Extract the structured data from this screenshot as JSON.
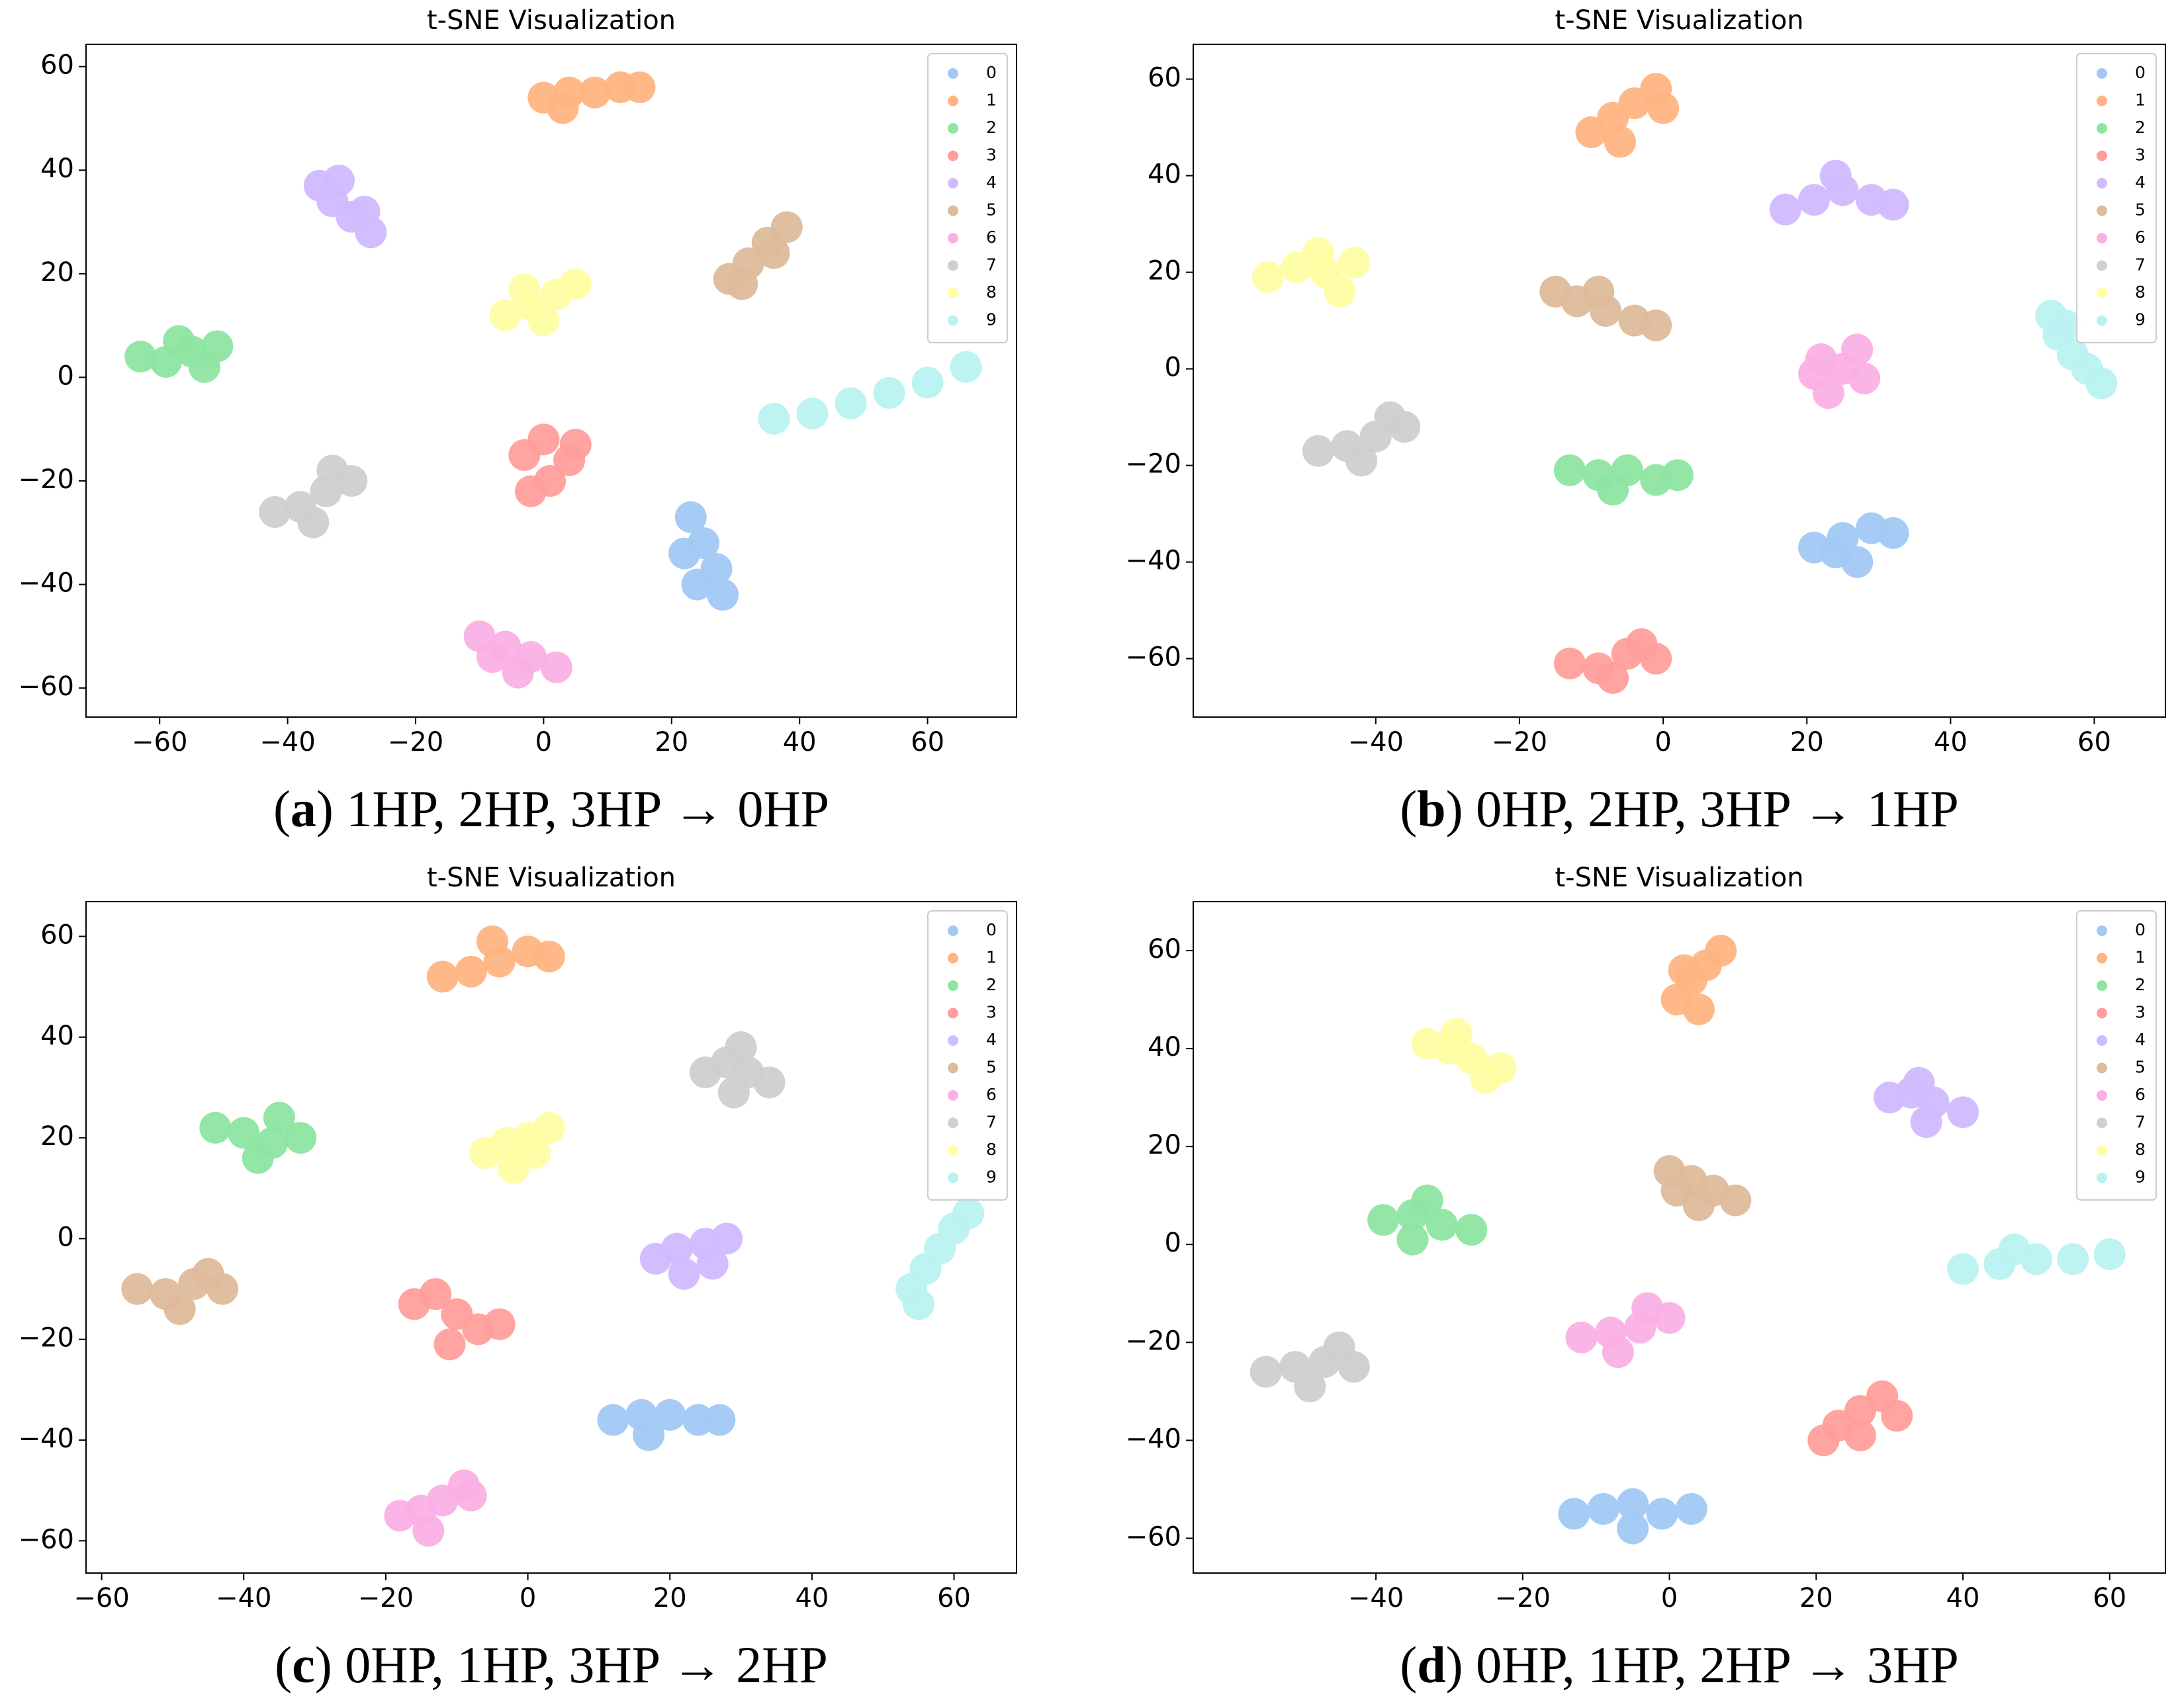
{
  "chart_data": [
    {
      "type": "scatter",
      "title": "t-SNE Visualization",
      "caption": [
        "(",
        "a",
        ") 1HP, 2HP, 3HP → 0HP"
      ],
      "legend": "upper right",
      "grid": false,
      "xlim": [
        -71.5,
        73.9
      ],
      "ylim": [
        -65.6,
        64.3
      ],
      "xticks": [
        {
          "value": -60,
          "label": "−60"
        },
        {
          "value": -40,
          "label": "−40"
        },
        {
          "value": -20,
          "label": "−20"
        },
        0,
        20,
        40,
        60
      ],
      "yticks": [
        {
          "value": -60,
          "label": "−60"
        },
        {
          "value": -40,
          "label": "−40"
        },
        {
          "value": -20,
          "label": "−20"
        },
        0,
        20,
        40,
        60
      ],
      "series": [
        {
          "name": "0",
          "color": "#a1c9f4",
          "x": [
            23,
            25,
            27,
            24,
            28,
            22
          ],
          "y": [
            -27,
            -32,
            -37,
            -40,
            -42,
            -34
          ]
        },
        {
          "name": "1",
          "color": "#ffb482",
          "x": [
            0,
            4,
            8,
            12,
            15,
            3
          ],
          "y": [
            54,
            55,
            55,
            56,
            56,
            52
          ]
        },
        {
          "name": "2",
          "color": "#8de5a1",
          "x": [
            -63,
            -59,
            -55,
            -51,
            -57,
            -53
          ],
          "y": [
            4,
            3,
            5,
            6,
            7,
            2
          ]
        },
        {
          "name": "3",
          "color": "#ff9f9b",
          "x": [
            -3,
            0,
            4,
            1,
            -2,
            5
          ],
          "y": [
            -15,
            -12,
            -16,
            -20,
            -22,
            -13
          ]
        },
        {
          "name": "4",
          "color": "#d0bbff",
          "x": [
            -35,
            -33,
            -30,
            -27,
            -32,
            -28
          ],
          "y": [
            37,
            34,
            31,
            28,
            38,
            32
          ]
        },
        {
          "name": "5",
          "color": "#debb9b",
          "x": [
            29,
            32,
            35,
            38,
            31,
            36
          ],
          "y": [
            19,
            22,
            26,
            29,
            18,
            24
          ]
        },
        {
          "name": "6",
          "color": "#fab0e4",
          "x": [
            -10,
            -6,
            -2,
            2,
            -4,
            -8
          ],
          "y": [
            -50,
            -52,
            -54,
            -56,
            -57,
            -54
          ]
        },
        {
          "name": "7",
          "color": "#cfcfcf",
          "x": [
            -42,
            -38,
            -34,
            -30,
            -36,
            -33
          ],
          "y": [
            -26,
            -25,
            -22,
            -20,
            -28,
            -18
          ]
        },
        {
          "name": "8",
          "color": "#fffea3",
          "x": [
            -6,
            -2,
            2,
            5,
            0,
            -3
          ],
          "y": [
            12,
            14,
            16,
            18,
            11,
            17
          ]
        },
        {
          "name": "9",
          "color": "#b9f2f0",
          "x": [
            36,
            42,
            48,
            54,
            60,
            66
          ],
          "y": [
            -8,
            -7,
            -5,
            -3,
            -1,
            2
          ]
        }
      ]
    },
    {
      "type": "scatter",
      "title": "t-SNE Visualization",
      "caption": [
        "(",
        "b",
        ") 0HP, 2HP, 3HP → 1HP"
      ],
      "legend": "upper right",
      "grid": false,
      "xlim": [
        -65.4,
        69.9
      ],
      "ylim": [
        -72.1,
        67.2
      ],
      "xticks": [
        {
          "value": -40,
          "label": "−40"
        },
        {
          "value": -20,
          "label": "−20"
        },
        0,
        20,
        40,
        60
      ],
      "yticks": [
        {
          "value": -60,
          "label": "−60"
        },
        {
          "value": -40,
          "label": "−40"
        },
        {
          "value": -20,
          "label": "−20"
        },
        0,
        20,
        40,
        60
      ],
      "series": [
        {
          "name": "0",
          "color": "#a1c9f4",
          "x": [
            21,
            25,
            29,
            32,
            27,
            24
          ],
          "y": [
            -37,
            -35,
            -33,
            -34,
            -40,
            -38
          ]
        },
        {
          "name": "1",
          "color": "#ffb482",
          "x": [
            -10,
            -7,
            -4,
            -1,
            -6,
            0
          ],
          "y": [
            49,
            52,
            55,
            58,
            47,
            54
          ]
        },
        {
          "name": "2",
          "color": "#8de5a1",
          "x": [
            -13,
            -9,
            -5,
            -1,
            2,
            -7
          ],
          "y": [
            -21,
            -22,
            -21,
            -23,
            -22,
            -25
          ]
        },
        {
          "name": "3",
          "color": "#ff9f9b",
          "x": [
            -13,
            -9,
            -5,
            -1,
            -7,
            -3
          ],
          "y": [
            -61,
            -62,
            -59,
            -60,
            -64,
            -57
          ]
        },
        {
          "name": "4",
          "color": "#d0bbff",
          "x": [
            17,
            21,
            25,
            29,
            32,
            24
          ],
          "y": [
            33,
            35,
            37,
            35,
            34,
            40
          ]
        },
        {
          "name": "5",
          "color": "#debb9b",
          "x": [
            -15,
            -12,
            -8,
            -4,
            -1,
            -9
          ],
          "y": [
            16,
            14,
            12,
            10,
            9,
            16
          ]
        },
        {
          "name": "6",
          "color": "#fab0e4",
          "x": [
            22,
            25,
            28,
            23,
            27,
            21
          ],
          "y": [
            2,
            0,
            -2,
            -5,
            4,
            -1
          ]
        },
        {
          "name": "7",
          "color": "#cfcfcf",
          "x": [
            -48,
            -44,
            -40,
            -36,
            -42,
            -38
          ],
          "y": [
            -17,
            -16,
            -14,
            -12,
            -19,
            -10
          ]
        },
        {
          "name": "8",
          "color": "#fffea3",
          "x": [
            -55,
            -51,
            -47,
            -43,
            -45,
            -48
          ],
          "y": [
            19,
            21,
            20,
            22,
            16,
            24
          ]
        },
        {
          "name": "9",
          "color": "#b9f2f0",
          "x": [
            54,
            55,
            57,
            59,
            61,
            56
          ],
          "y": [
            11,
            7,
            3,
            0,
            -3,
            9
          ]
        }
      ]
    },
    {
      "type": "scatter",
      "title": "t-SNE Visualization",
      "caption": [
        "(",
        "c",
        ") 0HP, 1HP, 3HP → 2HP"
      ],
      "legend": "upper right",
      "grid": false,
      "xlim": [
        -62.2,
        68.8
      ],
      "ylim": [
        -66.4,
        66.9
      ],
      "xticks": [
        {
          "value": -60,
          "label": "−60"
        },
        {
          "value": -40,
          "label": "−40"
        },
        {
          "value": -20,
          "label": "−20"
        },
        0,
        20,
        40,
        60
      ],
      "yticks": [
        {
          "value": -60,
          "label": "−60"
        },
        {
          "value": -40,
          "label": "−40"
        },
        {
          "value": -20,
          "label": "−20"
        },
        0,
        20,
        40,
        60
      ],
      "series": [
        {
          "name": "0",
          "color": "#a1c9f4",
          "x": [
            12,
            16,
            20,
            24,
            27,
            17
          ],
          "y": [
            -36,
            -35,
            -35,
            -36,
            -36,
            -39
          ]
        },
        {
          "name": "1",
          "color": "#ffb482",
          "x": [
            -12,
            -8,
            -4,
            0,
            3,
            -5
          ],
          "y": [
            52,
            53,
            55,
            57,
            56,
            59
          ]
        },
        {
          "name": "2",
          "color": "#8de5a1",
          "x": [
            -44,
            -40,
            -36,
            -32,
            -38,
            -35
          ],
          "y": [
            22,
            21,
            19,
            20,
            16,
            24
          ]
        },
        {
          "name": "3",
          "color": "#ff9f9b",
          "x": [
            -16,
            -13,
            -10,
            -7,
            -11,
            -4
          ],
          "y": [
            -13,
            -11,
            -15,
            -18,
            -21,
            -17
          ]
        },
        {
          "name": "4",
          "color": "#d0bbff",
          "x": [
            18,
            21,
            25,
            28,
            22,
            26
          ],
          "y": [
            -4,
            -2,
            -1,
            0,
            -7,
            -5
          ]
        },
        {
          "name": "5",
          "color": "#debb9b",
          "x": [
            -55,
            -51,
            -47,
            -43,
            -49,
            -45
          ],
          "y": [
            -10,
            -11,
            -9,
            -10,
            -14,
            -7
          ]
        },
        {
          "name": "6",
          "color": "#fab0e4",
          "x": [
            -18,
            -15,
            -12,
            -9,
            -14,
            -8
          ],
          "y": [
            -55,
            -54,
            -52,
            -49,
            -58,
            -51
          ]
        },
        {
          "name": "7",
          "color": "#cfcfcf",
          "x": [
            25,
            28,
            31,
            34,
            29,
            30
          ],
          "y": [
            33,
            35,
            33,
            31,
            29,
            38
          ]
        },
        {
          "name": "8",
          "color": "#fffea3",
          "x": [
            -6,
            -3,
            0,
            3,
            -2,
            1
          ],
          "y": [
            17,
            19,
            20,
            22,
            14,
            17
          ]
        },
        {
          "name": "9",
          "color": "#b9f2f0",
          "x": [
            54,
            56,
            58,
            60,
            62,
            55
          ],
          "y": [
            -10,
            -6,
            -2,
            2,
            5,
            -13
          ]
        }
      ]
    },
    {
      "type": "scatter",
      "title": "t-SNE Visualization",
      "caption": [
        "(",
        "d",
        ") 0HP, 1HP, 2HP → 3HP"
      ],
      "legend": "upper right",
      "grid": false,
      "xlim": [
        -64.9,
        67.6
      ],
      "ylim": [
        -67.1,
        70.0
      ],
      "xticks": [
        {
          "value": -40,
          "label": "−40"
        },
        {
          "value": -20,
          "label": "−20"
        },
        0,
        20,
        40,
        60
      ],
      "yticks": [
        {
          "value": -60,
          "label": "−60"
        },
        {
          "value": -40,
          "label": "−40"
        },
        {
          "value": -20,
          "label": "−20"
        },
        0,
        20,
        40,
        60
      ],
      "series": [
        {
          "name": "0",
          "color": "#a1c9f4",
          "x": [
            -13,
            -9,
            -5,
            -1,
            3,
            -5
          ],
          "y": [
            -55,
            -54,
            -53,
            -55,
            -54,
            -58
          ]
        },
        {
          "name": "1",
          "color": "#ffb482",
          "x": [
            1,
            3,
            5,
            7,
            4,
            2
          ],
          "y": [
            50,
            54,
            57,
            60,
            48,
            56
          ]
        },
        {
          "name": "2",
          "color": "#8de5a1",
          "x": [
            -39,
            -35,
            -31,
            -27,
            -33,
            -35
          ],
          "y": [
            5,
            6,
            4,
            3,
            9,
            1
          ]
        },
        {
          "name": "3",
          "color": "#ff9f9b",
          "x": [
            21,
            23,
            26,
            29,
            31,
            26
          ],
          "y": [
            -40,
            -37,
            -34,
            -31,
            -35,
            -39
          ]
        },
        {
          "name": "4",
          "color": "#d0bbff",
          "x": [
            30,
            33,
            36,
            40,
            35,
            34
          ],
          "y": [
            30,
            31,
            29,
            27,
            25,
            33
          ]
        },
        {
          "name": "5",
          "color": "#debb9b",
          "x": [
            0,
            3,
            6,
            9,
            4,
            1
          ],
          "y": [
            15,
            13,
            11,
            9,
            8,
            11
          ]
        },
        {
          "name": "6",
          "color": "#fab0e4",
          "x": [
            -12,
            -8,
            -4,
            0,
            -7,
            -3
          ],
          "y": [
            -19,
            -18,
            -17,
            -15,
            -22,
            -13
          ]
        },
        {
          "name": "7",
          "color": "#cfcfcf",
          "x": [
            -55,
            -51,
            -47,
            -43,
            -49,
            -45
          ],
          "y": [
            -26,
            -25,
            -24,
            -25,
            -29,
            -21
          ]
        },
        {
          "name": "8",
          "color": "#fffea3",
          "x": [
            -33,
            -30,
            -27,
            -23,
            -29,
            -25
          ],
          "y": [
            41,
            40,
            38,
            36,
            43,
            34
          ]
        },
        {
          "name": "9",
          "color": "#b9f2f0",
          "x": [
            40,
            45,
            50,
            55,
            60,
            47
          ],
          "y": [
            -5,
            -4,
            -3,
            -3,
            -2,
            -1
          ]
        }
      ]
    }
  ]
}
